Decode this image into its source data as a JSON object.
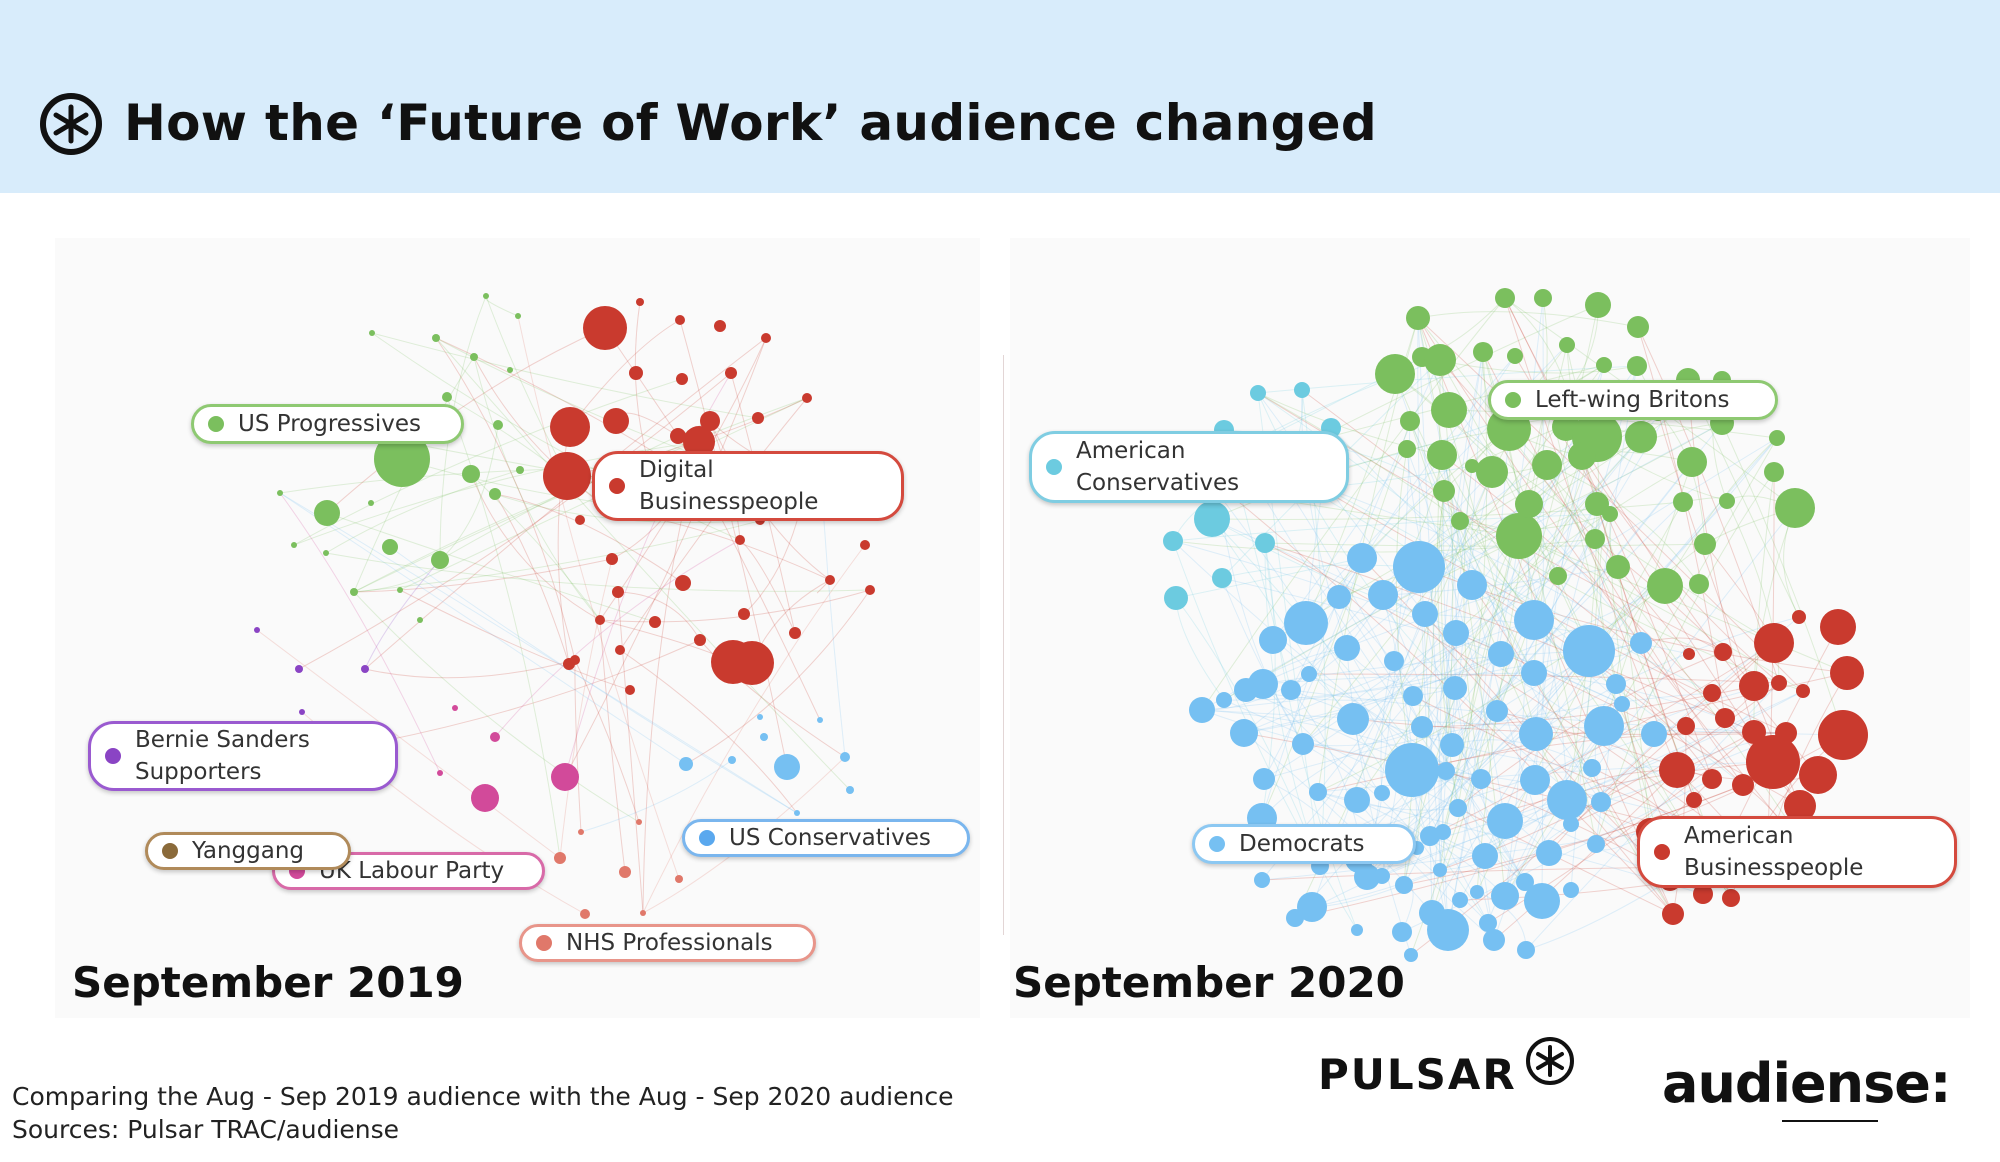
{
  "header": {
    "title": "How the ‘Future of Work’ audience changed",
    "logo_icon": "asterisk-circle-icon",
    "background": "#d8ecfb"
  },
  "panels": {
    "left": {
      "period": "September 2019",
      "labels": [
        {
          "id": "us-progressives",
          "text": "US Progressives",
          "color": "#7bbf5e"
        },
        {
          "id": "digital-businesspeople",
          "text": "Digital Businesspeople",
          "color": "#c93a2e"
        },
        {
          "id": "bernie-sanders",
          "text": "Bernie Sanders Supporters",
          "color": "#8a44c4"
        },
        {
          "id": "yanggang",
          "text": "Yanggang",
          "color": "#8a6a3a"
        },
        {
          "id": "uk-labour",
          "text": "UK Labour Party",
          "color": "#d24a9a"
        },
        {
          "id": "us-conservatives",
          "text": "US Conservatives",
          "color": "#5aa8ee"
        },
        {
          "id": "nhs-professionals",
          "text": "NHS Professionals",
          "color": "#e0786a"
        }
      ]
    },
    "right": {
      "period": "September 2020",
      "labels": [
        {
          "id": "left-wing-britons",
          "text": "Left-wing Britons",
          "color": "#7bbf5e"
        },
        {
          "id": "american-conservatives",
          "text": "American Conservatives",
          "color": "#6ccbe0"
        },
        {
          "id": "democrats",
          "text": "Democrats",
          "color": "#76c0f2"
        },
        {
          "id": "american-businesspeople",
          "text": "American Businesspeople",
          "color": "#c93a2e"
        }
      ]
    }
  },
  "footer": {
    "note_line1": "Comparing the Aug - Sep 2019 audience with the Aug - Sep 2020 audience",
    "note_line2": "Sources: Pulsar TRAC/audiense",
    "brand_pulsar": "PULSAR",
    "brand_audiense": "audiense:"
  },
  "colors": {
    "green": "#7bbf5e",
    "red": "#c93a2e",
    "blue": "#76c0f2",
    "purple": "#8a44c4",
    "pink": "#d24a9a",
    "salmon": "#e0786a",
    "teal": "#6ccbe0"
  }
}
